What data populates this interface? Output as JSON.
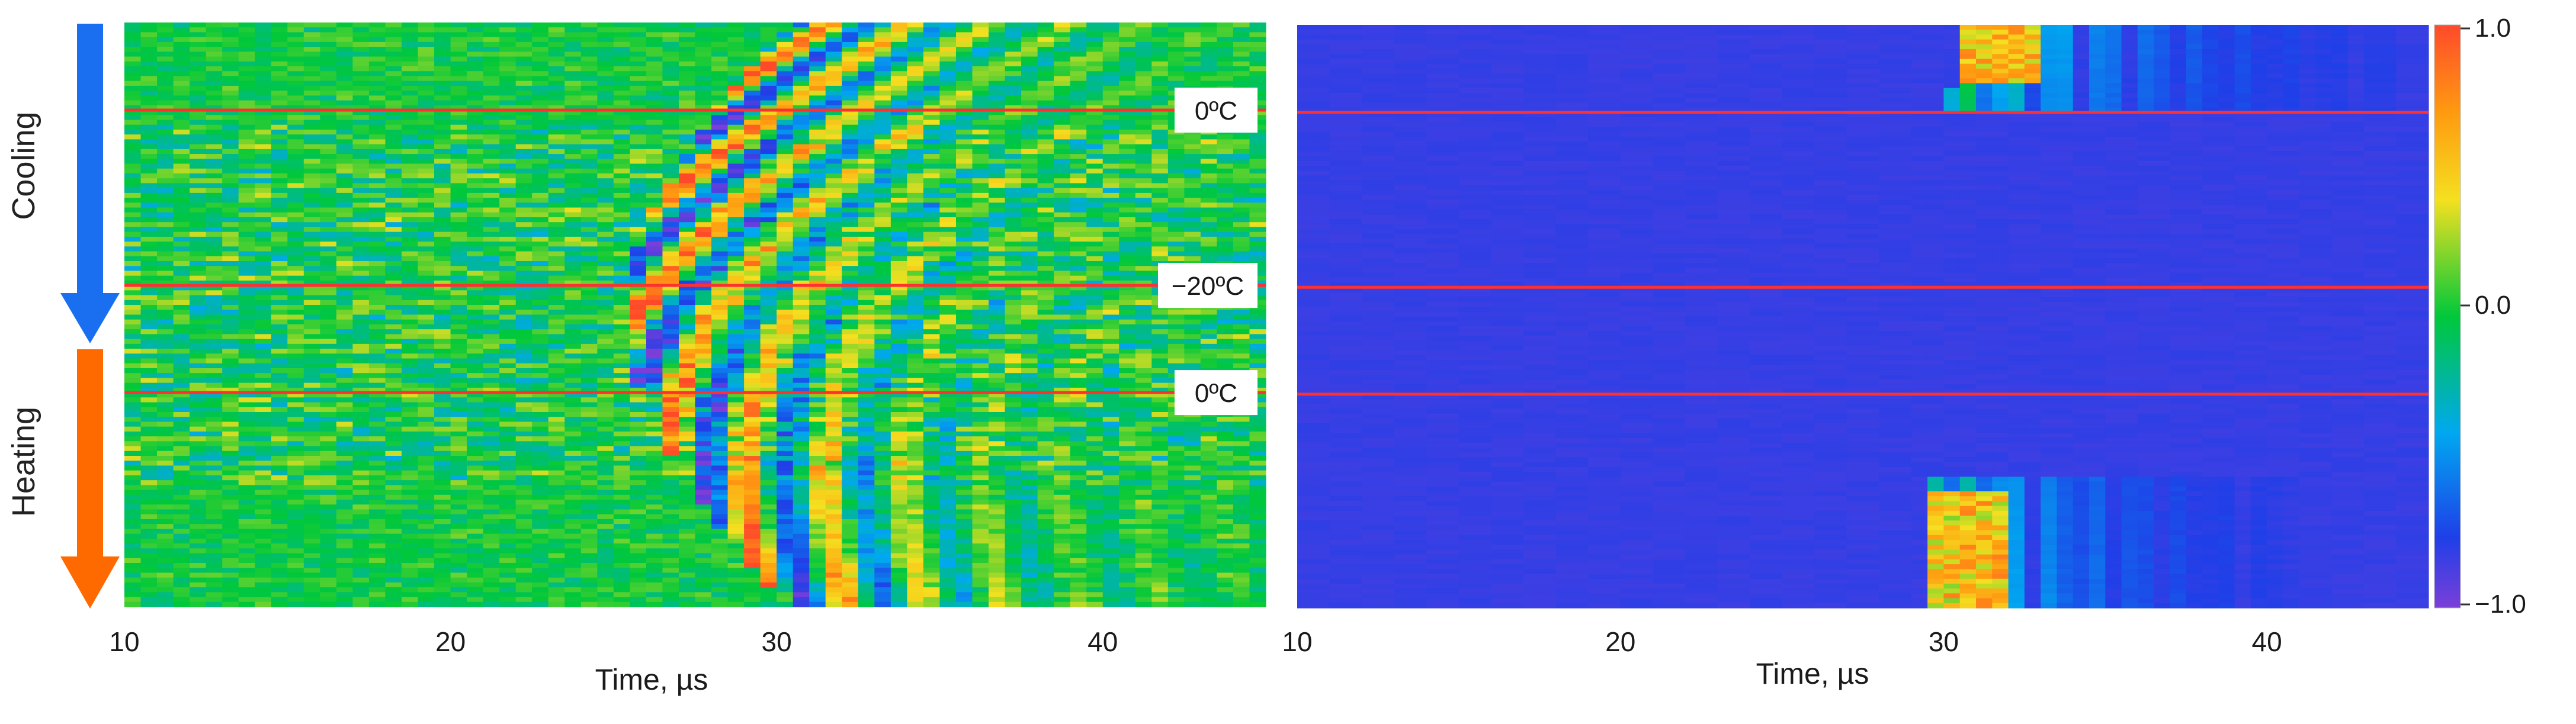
{
  "chart_data": [
    {
      "type": "heatmap",
      "xlabel": "Time, µs",
      "xlim": [
        10,
        45
      ],
      "x_ticks": [
        10,
        20,
        30,
        40
      ],
      "rows": 120,
      "phases": [
        {
          "label": "Cooling",
          "color": "#1a6ff0",
          "arrow": "down"
        },
        {
          "label": "Heating",
          "color": "#ff6a00",
          "arrow": "down"
        }
      ],
      "temperature_markers": [
        {
          "label": "0ºC",
          "row": 18
        },
        {
          "label": "−20ºC",
          "row": 54
        },
        {
          "label": "0ºC",
          "row": 76
        }
      ],
      "marker_color": "#ff3030"
    },
    {
      "type": "heatmap",
      "xlabel": "Time, µs",
      "xlim": [
        10,
        45
      ],
      "x_ticks": [
        10,
        20,
        30,
        40
      ],
      "rows": 120,
      "temperature_markers": [
        {
          "row": 18
        },
        {
          "row": 54
        },
        {
          "row": 76
        }
      ],
      "marker_color": "#ff3030",
      "colorbar": {
        "range": [
          -1.0,
          1.0
        ],
        "ticks": [
          "1.0",
          "0.0",
          "−1.0"
        ],
        "colormap": "jet"
      }
    }
  ]
}
